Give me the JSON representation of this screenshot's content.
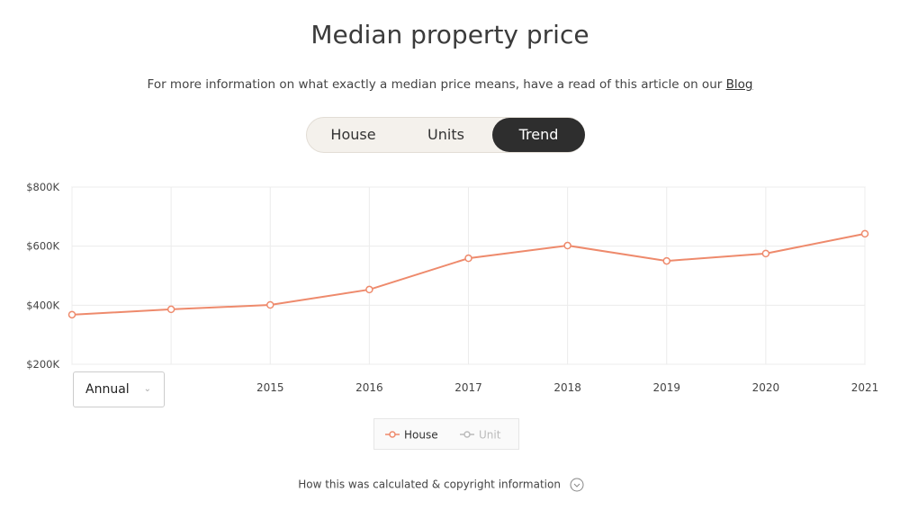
{
  "header": {
    "title": "Median property price",
    "subtitle": "For more information on what exactly a median price means, have a read of this article on our",
    "link": "Blog"
  },
  "tabs": [
    "House",
    "Units",
    "Trend"
  ],
  "active_tab": 2,
  "dropdown": "Annual",
  "footer": "How this was calculated & copyright information",
  "chart_data": {
    "type": "line",
    "categories": [
      null,
      null,
      "2015",
      "2016",
      "2017",
      "2018",
      "2019",
      "2020",
      "2021"
    ],
    "series": [
      {
        "name": "House",
        "color": "#ee8a6c",
        "values": [
          368000,
          386000,
          401000,
          453000,
          559000,
          602000,
          550000,
          575000,
          642000
        ]
      },
      {
        "name": "Unit",
        "color": "#bbbbbb",
        "hidden": true,
        "values": [
          null,
          null,
          null,
          null,
          null,
          null,
          null,
          null,
          null
        ]
      }
    ],
    "ylim": [
      200000,
      800000
    ],
    "yticks": [
      {
        "value": 200000,
        "label": "$200K"
      },
      {
        "value": 400000,
        "label": "$400K"
      },
      {
        "value": 600000,
        "label": "$600K"
      },
      {
        "value": 800000,
        "label": "$800K"
      }
    ],
    "grid": true
  }
}
